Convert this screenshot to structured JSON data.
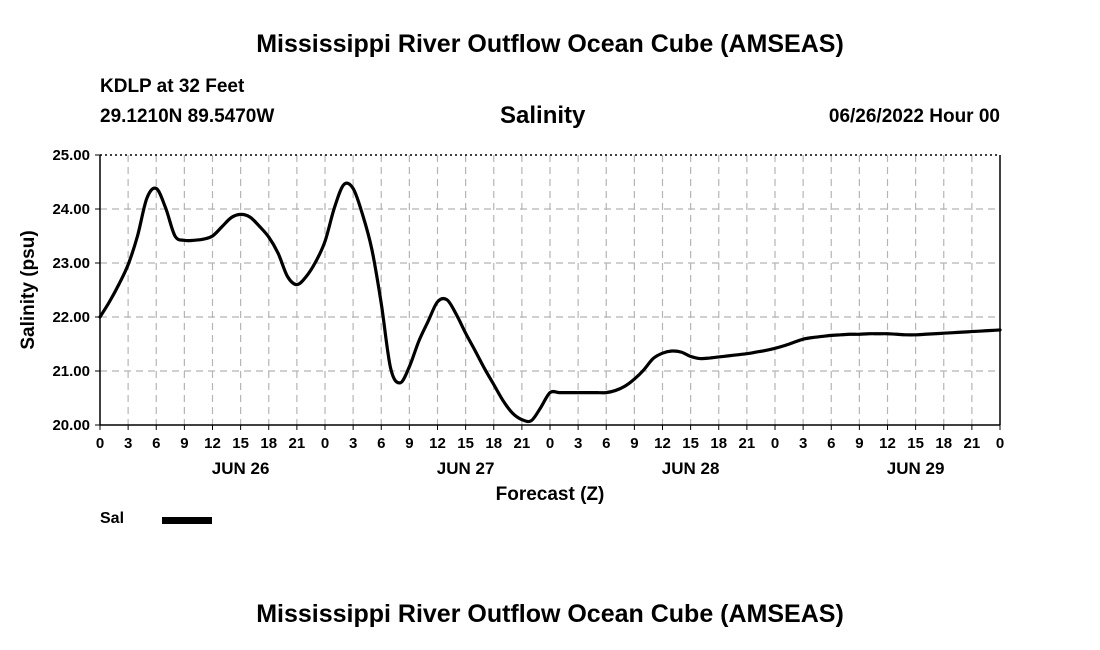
{
  "page": {
    "top_title": "Mississippi River Outflow Ocean Cube (AMSEAS)",
    "bottom_title": "Mississippi River Outflow Ocean Cube (AMSEAS)",
    "station": "KDLP at 32 Feet",
    "location": "29.1210N  89.5470W",
    "datetime": "06/26/2022 Hour 00"
  },
  "legend": {
    "label": "Sal"
  },
  "chart_data": {
    "type": "line",
    "title": "Salinity",
    "xlabel": "Forecast (Z)",
    "ylabel": "Salinity (psu)",
    "xlim": [
      0,
      96
    ],
    "ylim": [
      20.0,
      25.0
    ],
    "yticks": [
      "20.00",
      "21.00",
      "22.00",
      "23.00",
      "24.00",
      "25.00"
    ],
    "xtick_step_hours": 3,
    "xtick_labels": [
      "0",
      "3",
      "6",
      "9",
      "12",
      "15",
      "18",
      "21",
      "0",
      "3",
      "6",
      "9",
      "12",
      "15",
      "18",
      "21",
      "0",
      "3",
      "6",
      "9",
      "12",
      "15",
      "18",
      "21",
      "0",
      "3",
      "6",
      "9",
      "12",
      "15",
      "18",
      "21",
      "0"
    ],
    "day_labels": [
      {
        "hour": 15,
        "label": "JUN 26"
      },
      {
        "hour": 39,
        "label": "JUN 27"
      },
      {
        "hour": 63,
        "label": "JUN 28"
      },
      {
        "hour": 87,
        "label": "JUN 29"
      }
    ],
    "grid": true,
    "series": [
      {
        "name": "Sal",
        "color": "#000000",
        "x": [
          0,
          1,
          2,
          3,
          4,
          5,
          6,
          7,
          8,
          9,
          10,
          11,
          12,
          13,
          14,
          15,
          16,
          17,
          18,
          19,
          20,
          21,
          22,
          23,
          24,
          25,
          26,
          27,
          28,
          29,
          30,
          31,
          32,
          33,
          34,
          35,
          36,
          37,
          38,
          39,
          40,
          41,
          42,
          43,
          44,
          45,
          46,
          47,
          48,
          49,
          50,
          51,
          52,
          53,
          54,
          55,
          56,
          57,
          58,
          59,
          60,
          61,
          62,
          63,
          64,
          65,
          66,
          67,
          68,
          69,
          70,
          71,
          72,
          73,
          74,
          75,
          76,
          77,
          78,
          79,
          80,
          81,
          82,
          83,
          84,
          85,
          86,
          87,
          88,
          89,
          90,
          91,
          92,
          93,
          94,
          95,
          96
        ],
        "values": [
          22.0,
          22.28,
          22.6,
          22.97,
          23.5,
          24.2,
          24.38,
          24.02,
          23.5,
          23.42,
          23.42,
          23.44,
          23.5,
          23.67,
          23.84,
          23.9,
          23.85,
          23.68,
          23.48,
          23.18,
          22.75,
          22.6,
          22.75,
          23.02,
          23.4,
          24.02,
          24.45,
          24.38,
          23.9,
          23.25,
          22.25,
          21.05,
          20.78,
          21.08,
          21.55,
          21.92,
          22.28,
          22.32,
          22.05,
          21.7,
          21.38,
          21.05,
          20.75,
          20.45,
          20.22,
          20.1,
          20.08,
          20.32,
          20.6,
          20.6,
          20.6,
          20.6,
          20.6,
          20.6,
          20.6,
          20.64,
          20.72,
          20.85,
          21.02,
          21.23,
          21.33,
          21.37,
          21.35,
          21.27,
          21.23,
          21.24,
          21.26,
          21.28,
          21.3,
          21.32,
          21.35,
          21.38,
          21.42,
          21.47,
          21.53,
          21.59,
          21.62,
          21.64,
          21.66,
          21.67,
          21.68,
          21.68,
          21.69,
          21.69,
          21.69,
          21.68,
          21.67,
          21.67,
          21.68,
          21.69,
          21.7,
          21.71,
          21.72,
          21.73,
          21.74,
          21.75,
          21.76
        ]
      }
    ]
  }
}
